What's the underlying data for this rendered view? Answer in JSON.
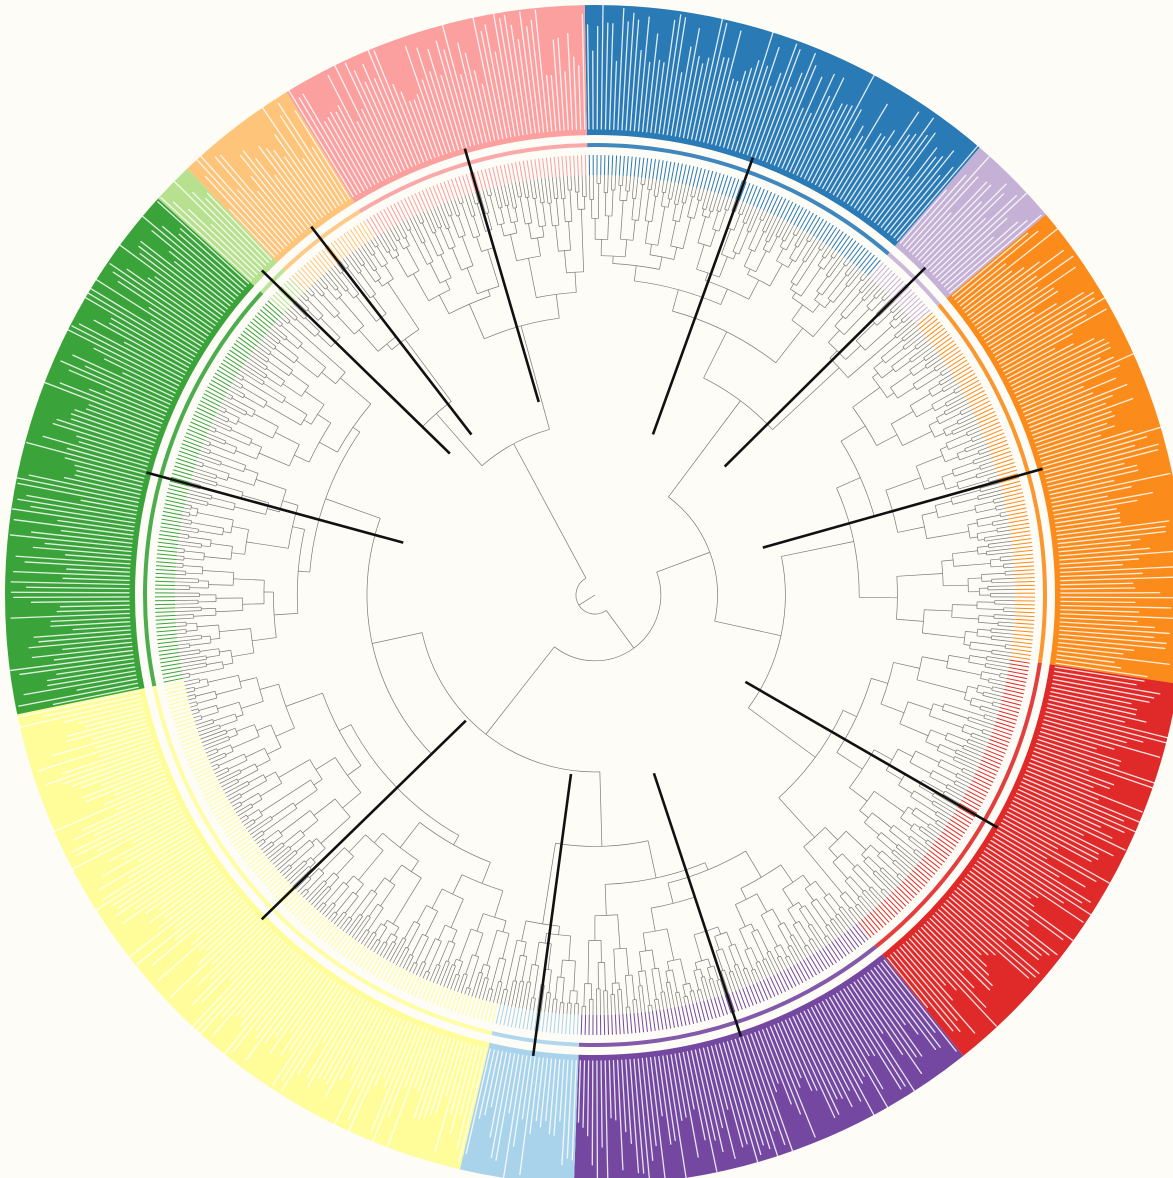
{
  "figure": {
    "kind": "circular phylogenetic tree",
    "background": "#fdfcf7",
    "leaf_label_color": "#ffffff",
    "branch_color": "#7a7a7a",
    "pointer_line_color": "#111111"
  },
  "clades": [
    {
      "id": "clade-blue",
      "color": "#2a7ab5",
      "leaf_count": 82
    },
    {
      "id": "clade-lavender",
      "color": "#c6b1d6",
      "leaf_count": 18
    },
    {
      "id": "clade-orange",
      "color": "#fb8c1b",
      "leaf_count": 96
    },
    {
      "id": "clade-red",
      "color": "#e02a2a",
      "leaf_count": 84
    },
    {
      "id": "clade-purple",
      "color": "#7448a0",
      "leaf_count": 80
    },
    {
      "id": "clade-light-blue",
      "color": "#a9d3ea",
      "leaf_count": 22
    },
    {
      "id": "clade-yellow",
      "color": "#fefd9a",
      "leaf_count": 128
    },
    {
      "id": "clade-green",
      "color": "#3aa43a",
      "leaf_count": 106
    },
    {
      "id": "clade-light-green",
      "color": "#b7e08f",
      "leaf_count": 8
    },
    {
      "id": "clade-peach",
      "color": "#fec47a",
      "leaf_count": 24
    },
    {
      "id": "clade-pink",
      "color": "#fb9f9f",
      "leaf_count": 60
    }
  ]
}
